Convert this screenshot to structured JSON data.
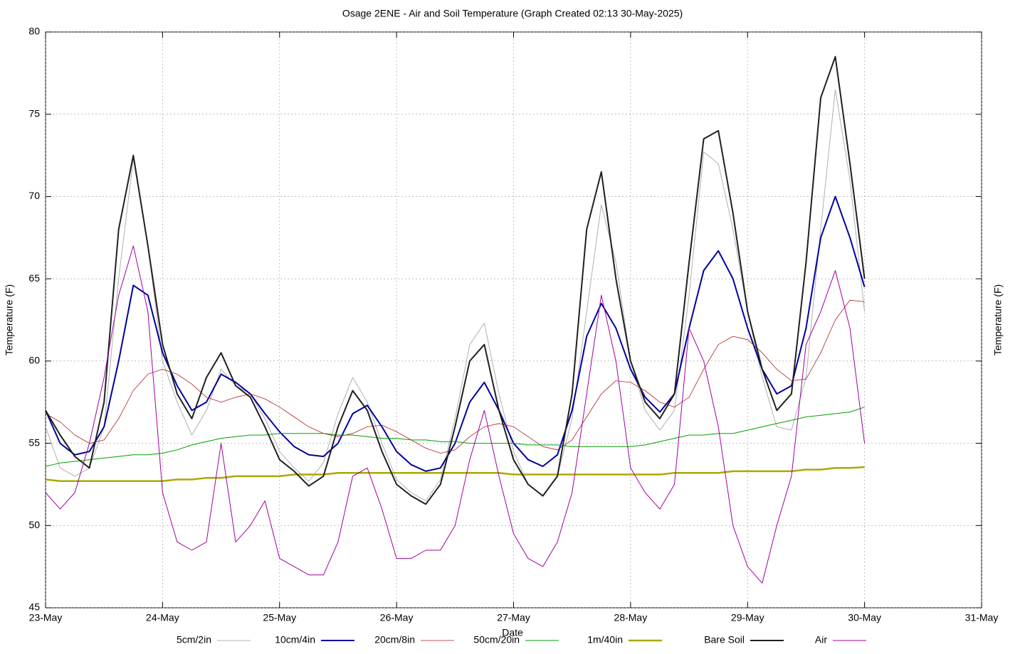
{
  "chart_data": {
    "type": "line",
    "title": "Osage 2ENE - Air and Soil Temperature (Graph Created 02:13 30-May-2025)",
    "xlabel": "Date",
    "ylabel": "Temperature (F)",
    "y2label": "Temperature (F)",
    "grid": true,
    "xlim": [
      23,
      31
    ],
    "ylim": [
      45,
      80
    ],
    "yticks": [
      45,
      50,
      55,
      60,
      65,
      70,
      75,
      80
    ],
    "xticks": [
      {
        "value": 23,
        "label": "23-May"
      },
      {
        "value": 24,
        "label": "24-May"
      },
      {
        "value": 25,
        "label": "25-May"
      },
      {
        "value": 26,
        "label": "26-May"
      },
      {
        "value": 27,
        "label": "27-May"
      },
      {
        "value": 28,
        "label": "28-May"
      },
      {
        "value": 29,
        "label": "29-May"
      },
      {
        "value": 30,
        "label": "30-May"
      },
      {
        "value": 31,
        "label": "31-May"
      }
    ],
    "x": [
      23,
      23.125,
      23.25,
      23.375,
      23.5,
      23.625,
      23.75,
      23.875,
      24,
      24.125,
      24.25,
      24.375,
      24.5,
      24.625,
      24.75,
      24.875,
      25,
      25.125,
      25.25,
      25.375,
      25.5,
      25.625,
      25.75,
      25.875,
      26,
      26.125,
      26.25,
      26.375,
      26.5,
      26.625,
      26.75,
      26.875,
      27,
      27.125,
      27.25,
      27.375,
      27.5,
      27.625,
      27.75,
      27.875,
      28,
      28.125,
      28.25,
      28.375,
      28.5,
      28.625,
      28.75,
      28.875,
      29,
      29.125,
      29.25,
      29.375,
      29.5,
      29.625,
      29.75,
      29.875,
      30
    ],
    "series": [
      {
        "name": "5cm/2in",
        "color": "#b0b0b0",
        "width": 1,
        "values": [
          56,
          53.5,
          53,
          53.5,
          56,
          65,
          72.3,
          67,
          60,
          57.5,
          55.5,
          57,
          59.5,
          58.5,
          58,
          56.5,
          54.5,
          53.5,
          52.7,
          53.8,
          56.8,
          59,
          57.5,
          55,
          52.8,
          52,
          51.5,
          52.8,
          56.5,
          61,
          62.3,
          58,
          54.5,
          52.5,
          51.8,
          53,
          56.5,
          63,
          69.5,
          66,
          60,
          57,
          55.8,
          57,
          64,
          72.7,
          72,
          68,
          63,
          59,
          56,
          55.8,
          59,
          68,
          76.5,
          71,
          63
        ]
      },
      {
        "name": "10cm/4in",
        "color": "#0000a0",
        "width": 2,
        "values": [
          57,
          55,
          54.3,
          54.5,
          56,
          60,
          64.6,
          64,
          60.5,
          58.5,
          57,
          57.5,
          59.2,
          58.7,
          58,
          56.8,
          55.7,
          54.8,
          54.3,
          54.2,
          55,
          56.8,
          57.3,
          56,
          54.5,
          53.7,
          53.3,
          53.5,
          55,
          57.5,
          58.7,
          57,
          55,
          54,
          53.6,
          54.3,
          57,
          61.5,
          63.5,
          62,
          59.5,
          57.8,
          56.9,
          58,
          62,
          65.5,
          66.7,
          65,
          62,
          59.5,
          58,
          58.5,
          62,
          67.5,
          70,
          67.5,
          64.5
        ]
      },
      {
        "name": "20cm/8in",
        "color": "#b22222",
        "width": 0.8,
        "values": [
          56.8,
          56.3,
          55.5,
          55,
          55.2,
          56.5,
          58.2,
          59.2,
          59.5,
          59.2,
          58.6,
          57.8,
          57.5,
          57.8,
          58,
          57.7,
          57.2,
          56.6,
          56,
          55.6,
          55.4,
          55.6,
          56,
          56.1,
          55.7,
          55.2,
          54.7,
          54.4,
          54.6,
          55.4,
          56,
          56.2,
          56,
          55.4,
          54.8,
          54.6,
          55.2,
          56.6,
          58,
          58.8,
          58.7,
          58.2,
          57.5,
          57.2,
          57.8,
          59.5,
          61,
          61.5,
          61.3,
          60.5,
          59.5,
          58.8,
          58.9,
          60.5,
          62.5,
          63.7,
          63.6
        ]
      },
      {
        "name": "50cm/20in",
        "color": "#00a000",
        "width": 1,
        "values": [
          53.6,
          53.8,
          53.9,
          54,
          54.1,
          54.2,
          54.3,
          54.3,
          54.4,
          54.6,
          54.9,
          55.1,
          55.3,
          55.4,
          55.5,
          55.5,
          55.6,
          55.6,
          55.6,
          55.6,
          55.5,
          55.5,
          55.4,
          55.3,
          55.3,
          55.2,
          55.2,
          55.1,
          55.1,
          55,
          55,
          55,
          55,
          54.9,
          54.9,
          54.9,
          54.8,
          54.8,
          54.8,
          54.8,
          54.8,
          54.9,
          55.1,
          55.3,
          55.5,
          55.5,
          55.6,
          55.6,
          55.8,
          56,
          56.2,
          56.4,
          56.6,
          56.7,
          56.8,
          56.9,
          57.2
        ]
      },
      {
        "name": "1m/40in",
        "color": "#aaaa00",
        "width": 2.5,
        "values": [
          52.8,
          52.7,
          52.7,
          52.7,
          52.7,
          52.7,
          52.7,
          52.7,
          52.7,
          52.8,
          52.8,
          52.9,
          52.9,
          53,
          53,
          53,
          53,
          53.1,
          53.1,
          53.1,
          53.2,
          53.2,
          53.2,
          53.2,
          53.2,
          53.2,
          53.2,
          53.2,
          53.2,
          53.2,
          53.2,
          53.2,
          53.1,
          53.1,
          53.1,
          53.1,
          53.1,
          53.1,
          53.1,
          53.1,
          53.1,
          53.1,
          53.1,
          53.2,
          53.2,
          53.2,
          53.2,
          53.3,
          53.3,
          53.3,
          53.3,
          53.3,
          53.4,
          53.4,
          53.5,
          53.5,
          53.55
        ]
      },
      {
        "name": "Bare Soil",
        "color": "#202020",
        "width": 2,
        "values": [
          57,
          55.5,
          54.2,
          53.5,
          57.5,
          68,
          72.5,
          67,
          61,
          58,
          56.5,
          59,
          60.5,
          58.5,
          57.8,
          56,
          54,
          53.3,
          52.4,
          53,
          56,
          58.2,
          57,
          54.5,
          52.5,
          51.8,
          51.3,
          52.5,
          56,
          60,
          61,
          57,
          54,
          52.5,
          51.8,
          53,
          58,
          68,
          71.5,
          65,
          60,
          57.5,
          56.5,
          58,
          66,
          73.5,
          74,
          69,
          63,
          59.5,
          57,
          58,
          66,
          76,
          78.5,
          72,
          65
        ]
      },
      {
        "name": "Air",
        "color": "#a000a0",
        "width": 1,
        "values": [
          52,
          51,
          52,
          55,
          59,
          64,
          67,
          63,
          52,
          49,
          48.5,
          49,
          55,
          49,
          50,
          51.5,
          48,
          47.5,
          47,
          47,
          49,
          53,
          53.5,
          51,
          48,
          48,
          48.5,
          48.5,
          50,
          54,
          57,
          53,
          49.5,
          48,
          47.5,
          49,
          52,
          58,
          64,
          60,
          53.5,
          52,
          51,
          52.5,
          62,
          60,
          56,
          50,
          47.5,
          46.5,
          50,
          53,
          61,
          63,
          65.5,
          62,
          55
        ]
      }
    ]
  }
}
